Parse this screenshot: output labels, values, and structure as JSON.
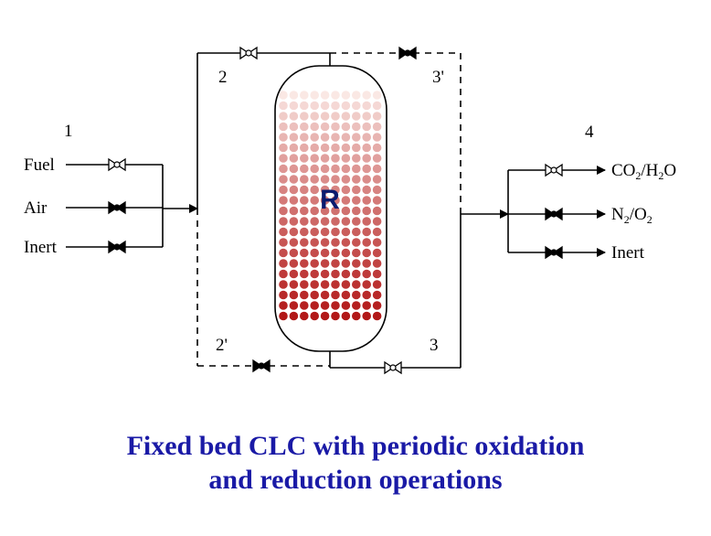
{
  "diagram": {
    "reactor_label": "R",
    "inlet_labels": [
      "Fuel",
      "Air",
      "Inert"
    ],
    "outlet_labels": [
      {
        "main": "CO",
        "sub1": "2",
        "mid": "/H",
        "sub2": "2",
        "tail": "O"
      },
      {
        "main": "N",
        "sub1": "2",
        "mid": "/O",
        "sub2": "2",
        "tail": ""
      },
      {
        "main": "Inert",
        "sub1": "",
        "mid": "",
        "sub2": "",
        "tail": ""
      }
    ],
    "node_labels": {
      "n1": "1",
      "n2": "2",
      "n3prime": "3'",
      "n4": "4",
      "n2prime": "2'",
      "n3": "3"
    }
  },
  "caption": {
    "line1": "Fixed bed CLC with periodic oxidation",
    "line2": "and reduction operations"
  },
  "colors": {
    "line": "#000000",
    "caption": "#1a1aa6",
    "reactor_label": "#0b1a6e",
    "bed_dark": "#b11a1a",
    "bed_light": "#f8e8e6"
  }
}
